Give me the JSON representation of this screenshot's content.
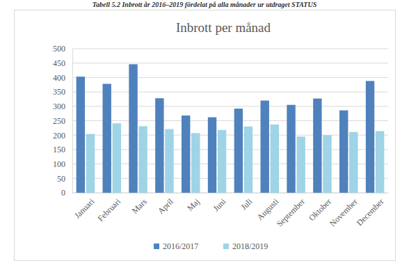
{
  "chart_data": {
    "type": "bar",
    "title": "Inbrott per månad",
    "annotations": [
      "Tabell 5.2 Inbrott år 2016–2019 fördelat på alla månader ur utdraget STATUS"
    ],
    "categories": [
      "Januari",
      "Februari",
      "Mars",
      "April",
      "Maj",
      "Juni",
      "Juli",
      "Augusti",
      "September",
      "Oktober",
      "November",
      "December"
    ],
    "series": [
      {
        "name": "2016/2017",
        "color": "#4f81bd",
        "values": [
          403,
          378,
          446,
          328,
          268,
          262,
          292,
          320,
          305,
          327,
          286,
          388
        ]
      },
      {
        "name": "2018/2019",
        "color": "#9fd3e6",
        "values": [
          204,
          241,
          231,
          221,
          207,
          218,
          230,
          237,
          195,
          200,
          211,
          214
        ]
      }
    ],
    "ylim": [
      0,
      500
    ],
    "yticks": [
      0,
      50,
      100,
      150,
      200,
      250,
      300,
      350,
      400,
      450,
      500
    ],
    "grid": true,
    "legend": "bottom"
  }
}
